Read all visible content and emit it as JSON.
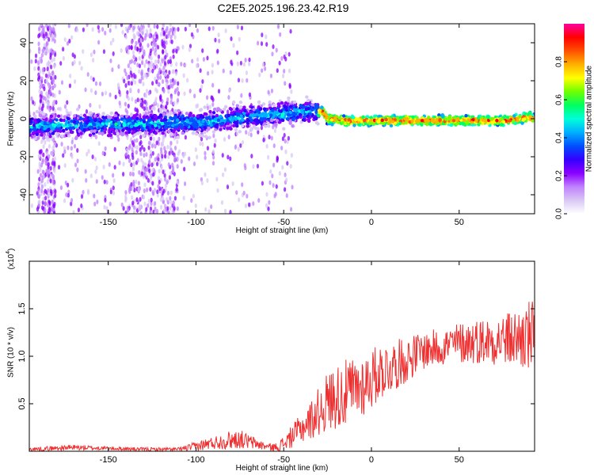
{
  "title": "C2E5.2025.196.23.42.R19",
  "colors": {
    "snr_line": "#f03030",
    "colorbar": [
      "#ffffff",
      "#d8c8f4",
      "#c080ff",
      "#8a00ff",
      "#3300ff",
      "#0050ff",
      "#00b0ff",
      "#00ffd8",
      "#00ff60",
      "#70ff00",
      "#ffff00",
      "#ffb000",
      "#ff5000",
      "#ff0000",
      "#ff00a0"
    ]
  },
  "chart_data": [
    {
      "type": "heatmap",
      "title": "",
      "xlabel": "Height of straight line (km)",
      "ylabel": "Frequency (Hz)",
      "xlim": [
        -195,
        93
      ],
      "ylim": [
        -50,
        50
      ],
      "xticks": [
        -150,
        -100,
        -50,
        0,
        50
      ],
      "xtick_labels": [
        "-150",
        "-100",
        "-50",
        "0",
        "50"
      ],
      "yticks": [
        -40,
        -20,
        0,
        20,
        40
      ],
      "ytick_labels": [
        "-40",
        "-20",
        "0",
        "20",
        "40"
      ],
      "ridge": {
        "x": [
          -195,
          -150,
          -100,
          -80,
          -60,
          -45,
          -35,
          -28,
          -25,
          -15,
          0,
          25,
          50,
          75,
          85,
          90,
          93
        ],
        "frequency": [
          -4,
          -3,
          -2,
          0,
          2,
          3,
          4,
          4,
          0,
          -1,
          -1,
          -1,
          -1,
          -1,
          0,
          1,
          0
        ]
      },
      "colorbar": {
        "label": "Normalized spectral amplitude",
        "range": [
          0.0,
          1.0
        ],
        "ticks": [
          0.0,
          0.2,
          0.4,
          0.6,
          0.8
        ],
        "tick_labels": [
          "0.0",
          "0.2",
          "0.4",
          "0.6",
          "0.8"
        ]
      }
    },
    {
      "type": "line",
      "title": "",
      "xlabel": "Height of straight line (km)",
      "ylabel": "SNR (10 * v/v)",
      "y_multiplier": "(x10",
      "y_multiplier_exp": "4",
      "y_multiplier_close": ")",
      "xlim": [
        -195,
        93
      ],
      "ylim": [
        0,
        2.0
      ],
      "xticks": [
        -150,
        -100,
        -50,
        0,
        50
      ],
      "xtick_labels": [
        "-150",
        "-100",
        "-50",
        "0",
        "50"
      ],
      "yticks": [
        0.5,
        1.0,
        1.5
      ],
      "ytick_labels": [
        "0.5",
        "1.0",
        "1.5"
      ],
      "envelope": {
        "x": [
          -195,
          -170,
          -150,
          -130,
          -110,
          -100,
          -90,
          -80,
          -75,
          -70,
          -60,
          -55,
          -50,
          -45,
          -40,
          -35,
          -30,
          -25,
          -20,
          -15,
          -10,
          -5,
          0,
          5,
          10,
          20,
          25,
          30,
          40,
          50,
          60,
          70,
          80,
          85,
          90,
          93
        ],
        "mean": [
          0.02,
          0.04,
          0.03,
          0.02,
          0.02,
          0.05,
          0.09,
          0.12,
          0.13,
          0.1,
          0.05,
          0.04,
          0.08,
          0.16,
          0.24,
          0.32,
          0.42,
          0.52,
          0.58,
          0.6,
          0.64,
          0.7,
          0.76,
          0.84,
          0.88,
          0.96,
          1.02,
          1.06,
          1.1,
          1.14,
          1.16,
          1.17,
          1.18,
          1.19,
          1.2,
          1.18
        ],
        "spread": [
          0.02,
          0.03,
          0.02,
          0.02,
          0.02,
          0.05,
          0.07,
          0.1,
          0.1,
          0.08,
          0.04,
          0.04,
          0.08,
          0.12,
          0.16,
          0.2,
          0.26,
          0.32,
          0.34,
          0.36,
          0.36,
          0.34,
          0.32,
          0.3,
          0.28,
          0.24,
          0.22,
          0.2,
          0.2,
          0.22,
          0.24,
          0.26,
          0.3,
          0.34,
          0.4,
          0.4
        ]
      }
    }
  ]
}
